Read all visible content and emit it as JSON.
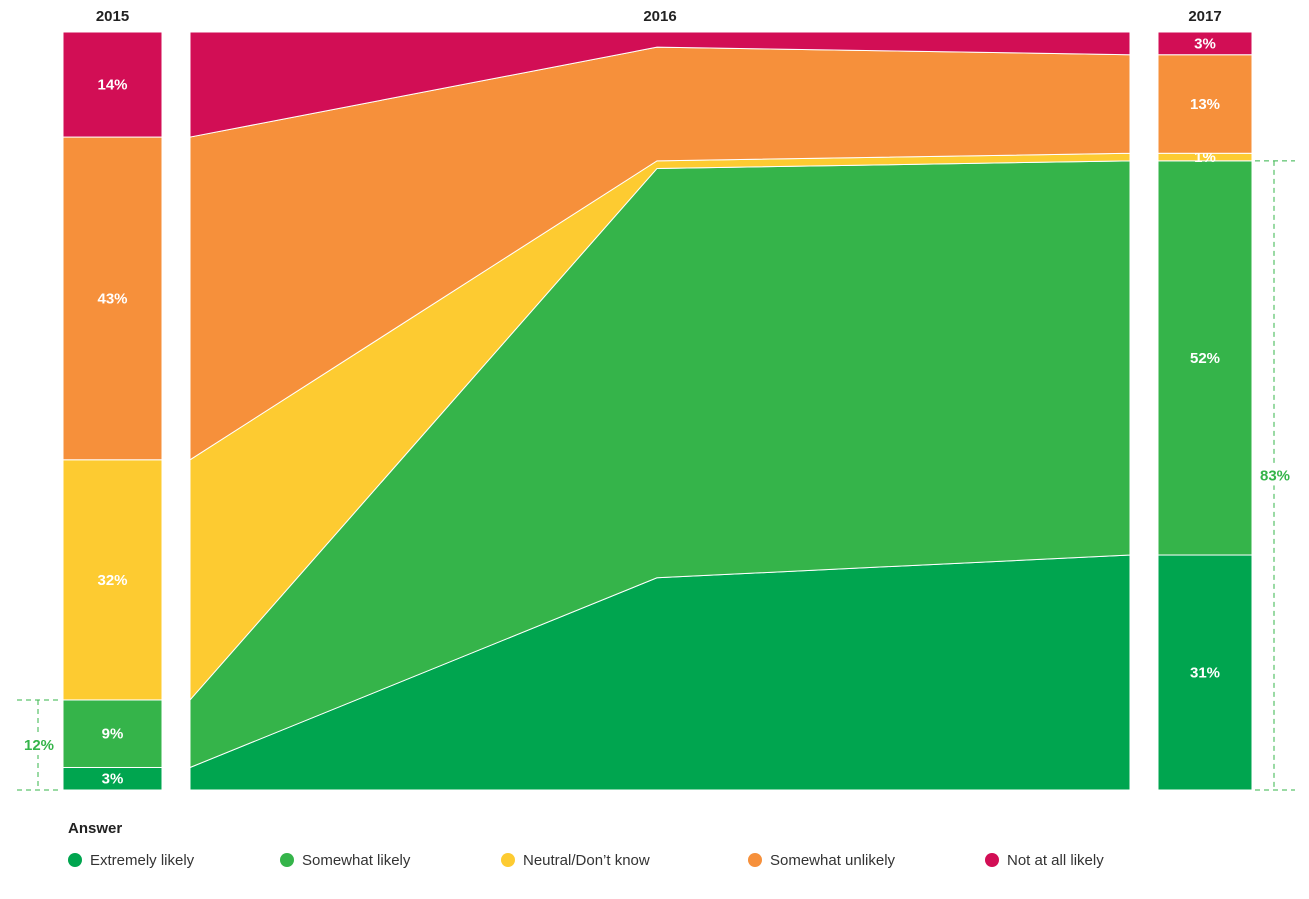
{
  "chart_data": {
    "type": "stacked-bar-area",
    "categories": [
      "2015",
      "2016",
      "2017"
    ],
    "series": [
      {
        "name": "Extremely likely",
        "color": "#00a54f",
        "values": [
          3,
          28,
          31
        ],
        "value_labels": [
          "3%",
          null,
          "31%"
        ]
      },
      {
        "name": "Somewhat likely",
        "color": "#35b44a",
        "values": [
          9,
          54,
          52
        ],
        "value_labels": [
          "9%",
          null,
          "52%"
        ]
      },
      {
        "name": "Neutral/Don’t know",
        "color": "#fdcb31",
        "values": [
          32,
          1,
          1
        ],
        "value_labels": [
          "32%",
          null,
          "1%"
        ]
      },
      {
        "name": "Somewhat unlikely",
        "color": "#f6903b",
        "values": [
          43,
          15,
          13
        ],
        "value_labels": [
          "43%",
          null,
          "13%"
        ]
      },
      {
        "name": "Not at all likely",
        "color": "#d20e55",
        "values": [
          14,
          2,
          3
        ],
        "value_labels": [
          "14%",
          null,
          "3%"
        ]
      }
    ],
    "annotations": [
      "12%",
      "83%"
    ],
    "legend_title": "Answer"
  }
}
